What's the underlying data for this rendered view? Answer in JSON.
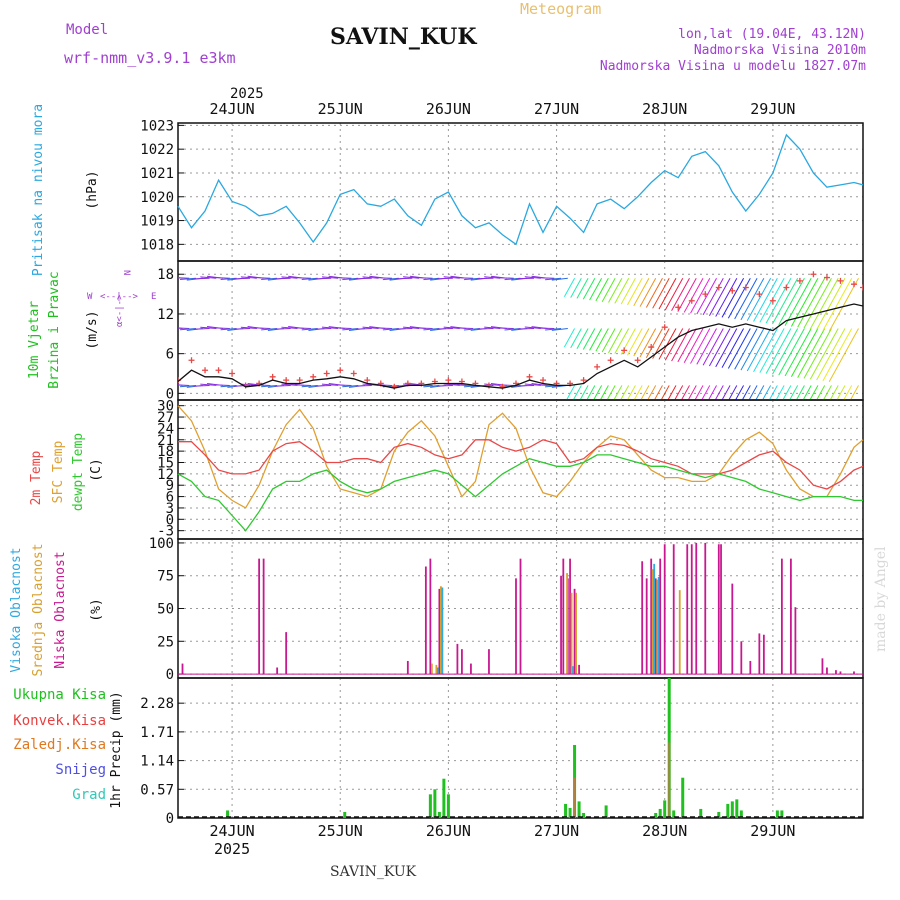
{
  "header": {
    "model_label": "Model",
    "model_name": "wrf-nmm_v3.9.1 e3km",
    "station": "SAVIN_KUK",
    "meteogram_label": "Meteogram",
    "lonlat": "lon,lat (19.04E, 43.12N)",
    "elevation": "Nadmorska Visina 2010m",
    "model_elevation": "Nadmorska Visina u modelu 1827.07m",
    "year_top": "2025",
    "year_bottom": "2025",
    "footer_station": "SAVIN_KUK",
    "credit": "made by Angel"
  },
  "colors": {
    "pressure": "#2aa8e0",
    "temp2m": "#e84848",
    "sfc": "#e0a030",
    "dewpt": "#30c830",
    "high_cloud": "#30a8e0",
    "mid_cloud": "#d8a030",
    "low_cloud": "#c81890",
    "total_precip": "#20c020",
    "conv_precip": "#e84040",
    "frozen": "#e07820",
    "snow": "#5050e0",
    "hail": "#30c8b8",
    "purple_text": "#a040d0"
  },
  "dates": [
    "24JUN",
    "25JUN",
    "26JUN",
    "27JUN",
    "28JUN",
    "29JUN"
  ],
  "chart_data": [
    {
      "type": "line",
      "id": "pressure",
      "title": "Pritisak na nivou mora",
      "ylabel": "(hPa)",
      "x_unit": "hours since 2025-06-24 00:00 UTC",
      "xlim": [
        -12,
        140
      ],
      "ylim": [
        1017.3,
        1023.1
      ],
      "yticks": [
        1018,
        1019,
        1020,
        1021,
        1022,
        1023
      ],
      "series": [
        {
          "name": "Pritisak",
          "x": [
            -12,
            -9,
            -6,
            -3,
            0,
            3,
            6,
            9,
            12,
            15,
            18,
            21,
            24,
            27,
            30,
            33,
            36,
            39,
            42,
            45,
            48,
            51,
            54,
            57,
            60,
            63,
            66,
            69,
            72,
            75,
            78,
            81,
            84,
            87,
            90,
            93,
            96,
            99,
            102,
            105,
            108,
            111,
            114,
            117,
            120,
            123,
            126,
            129,
            132,
            135,
            138,
            140
          ],
          "y": [
            1019.6,
            1018.7,
            1019.4,
            1020.7,
            1019.8,
            1019.6,
            1019.2,
            1019.3,
            1019.6,
            1018.9,
            1018.1,
            1018.9,
            1020.1,
            1020.3,
            1019.7,
            1019.6,
            1019.9,
            1019.2,
            1018.8,
            1019.9,
            1020.2,
            1019.2,
            1018.7,
            1018.9,
            1018.4,
            1018.0,
            1019.7,
            1018.5,
            1019.6,
            1019.1,
            1018.5,
            1019.7,
            1019.9,
            1019.5,
            1020.0,
            1020.6,
            1021.1,
            1020.8,
            1021.7,
            1021.9,
            1021.3,
            1020.2,
            1019.4,
            1020.1,
            1021.0,
            1022.6,
            1022.0,
            1021.0,
            1020.4,
            1020.5,
            1020.6,
            1020.5
          ]
        }
      ]
    },
    {
      "type": "line",
      "id": "wind",
      "title": "10m Vjetar Brzina i Pravac",
      "ylabel": "(m/s)",
      "compass": {
        "n": "N",
        "s": "S",
        "e": "E",
        "w": "W",
        "sym": "α<-|->"
      },
      "xlim": [
        -12,
        140
      ],
      "ylim": [
        -1,
        20
      ],
      "yticks": [
        0,
        6,
        12,
        18
      ],
      "series": [
        {
          "name": "Udari vjetra",
          "marker": "+",
          "x": [
            -12,
            -9,
            -6,
            -3,
            0,
            3,
            6,
            9,
            12,
            15,
            18,
            21,
            24,
            27,
            30,
            33,
            36,
            39,
            42,
            45,
            48,
            51,
            54,
            57,
            60,
            63,
            66,
            69,
            72,
            75,
            78,
            81,
            84,
            87,
            90,
            93,
            96,
            99,
            102,
            105,
            108,
            111,
            114,
            117,
            120,
            123,
            126,
            129,
            132,
            135,
            138,
            140
          ],
          "y": [
            2.0,
            5.0,
            3.5,
            3.5,
            3.0,
            1.2,
            1.5,
            2.5,
            2.0,
            2.0,
            2.5,
            3.0,
            3.5,
            3.0,
            2.0,
            1.5,
            1.0,
            1.5,
            1.5,
            1.8,
            2.0,
            1.8,
            1.5,
            1.2,
            1.0,
            1.5,
            2.5,
            2.0,
            1.5,
            1.5,
            2.0,
            4.0,
            5.0,
            6.5,
            5.0,
            7.0,
            10.0,
            13.0,
            14.0,
            15.0,
            16.0,
            15.5,
            16.0,
            15.0,
            14.0,
            16.0,
            17.0,
            18.0,
            17.5,
            17.0,
            16.5,
            16.0
          ]
        },
        {
          "name": "Srednja brzina",
          "x": [
            -12,
            -9,
            -6,
            -3,
            0,
            3,
            6,
            9,
            12,
            15,
            18,
            21,
            24,
            27,
            30,
            33,
            36,
            39,
            42,
            45,
            48,
            51,
            54,
            57,
            60,
            63,
            66,
            69,
            72,
            75,
            78,
            81,
            84,
            87,
            90,
            93,
            96,
            99,
            102,
            105,
            108,
            111,
            114,
            117,
            120,
            123,
            126,
            129,
            132,
            135,
            138,
            140
          ],
          "y": [
            1.8,
            3.5,
            2.5,
            2.5,
            2.2,
            1.0,
            1.2,
            2.0,
            1.5,
            1.5,
            2.0,
            2.2,
            2.5,
            2.2,
            1.5,
            1.2,
            0.8,
            1.2,
            1.2,
            1.5,
            1.5,
            1.5,
            1.2,
            1.0,
            0.8,
            1.2,
            2.0,
            1.5,
            1.2,
            1.2,
            1.5,
            3.0,
            4.0,
            5.0,
            4.0,
            5.5,
            7.0,
            8.5,
            9.5,
            10.0,
            10.5,
            10.0,
            10.5,
            10.0,
            9.5,
            11.0,
            11.5,
            12.0,
            12.5,
            13.0,
            13.5,
            13.2
          ]
        }
      ]
    },
    {
      "type": "line",
      "id": "temperature",
      "title": "2m Temp / SFC Temp / dewpt Temp",
      "ylabel": "(C)",
      "xlim": [
        -12,
        140
      ],
      "ylim": [
        -5.2,
        31.5
      ],
      "yticks": [
        -3,
        0,
        3,
        6,
        9,
        12,
        15,
        18,
        21,
        24,
        27,
        30
      ],
      "series": [
        {
          "name": "2m Temp",
          "x": [
            -12,
            -9,
            -6,
            -3,
            0,
            3,
            6,
            9,
            12,
            15,
            18,
            21,
            24,
            27,
            30,
            33,
            36,
            39,
            42,
            45,
            48,
            51,
            54,
            57,
            60,
            63,
            66,
            69,
            72,
            75,
            78,
            81,
            84,
            87,
            90,
            93,
            96,
            99,
            102,
            105,
            108,
            111,
            114,
            117,
            120,
            123,
            126,
            129,
            132,
            135,
            138,
            140
          ],
          "y": [
            20.5,
            20.5,
            17,
            13,
            12,
            12,
            13,
            18,
            20,
            20.5,
            18,
            15,
            15,
            16,
            16,
            15,
            19,
            20,
            19,
            17,
            16,
            17,
            21,
            21,
            19,
            18,
            19,
            21,
            20,
            15,
            16,
            19,
            20,
            19.5,
            18,
            16,
            15,
            14,
            12,
            12,
            12,
            13,
            15,
            17,
            18,
            15,
            13,
            9,
            8,
            10,
            13,
            14
          ]
        },
        {
          "name": "SFC Temp",
          "x": [
            -12,
            -9,
            -6,
            -3,
            0,
            3,
            6,
            9,
            12,
            15,
            18,
            21,
            24,
            27,
            30,
            33,
            36,
            39,
            42,
            45,
            48,
            51,
            54,
            57,
            60,
            63,
            66,
            69,
            72,
            75,
            78,
            81,
            84,
            87,
            90,
            93,
            96,
            99,
            102,
            105,
            108,
            111,
            114,
            117,
            120,
            123,
            126,
            129,
            132,
            135,
            138,
            140
          ],
          "y": [
            30,
            26,
            18,
            8,
            5,
            3,
            9,
            18,
            25,
            29,
            24,
            14,
            8,
            7,
            6,
            8,
            18,
            23,
            26,
            22,
            14,
            6,
            10,
            25,
            28,
            24,
            14,
            7,
            6,
            10,
            15,
            19,
            22,
            21,
            17,
            13,
            11,
            11,
            10,
            10,
            12,
            17,
            21,
            23,
            20,
            13,
            8,
            6,
            6,
            12,
            19,
            21
          ]
        },
        {
          "name": "dewpt Temp",
          "x": [
            -12,
            -9,
            -6,
            -3,
            0,
            3,
            6,
            9,
            12,
            15,
            18,
            21,
            24,
            27,
            30,
            33,
            36,
            39,
            42,
            45,
            48,
            51,
            54,
            57,
            60,
            63,
            66,
            69,
            72,
            75,
            78,
            81,
            84,
            87,
            90,
            93,
            96,
            99,
            102,
            105,
            108,
            111,
            114,
            117,
            120,
            123,
            126,
            129,
            132,
            135,
            138,
            140
          ],
          "y": [
            12,
            10,
            6,
            5,
            1,
            -3,
            2,
            8,
            10,
            10,
            12,
            13,
            10,
            8,
            7,
            8,
            10,
            11,
            12,
            13,
            12,
            9,
            6,
            9,
            12,
            14,
            16,
            15,
            14,
            14,
            15,
            17,
            17,
            16,
            15,
            14,
            14,
            13,
            12,
            11,
            12,
            11,
            10,
            8,
            7,
            6,
            5,
            6,
            6,
            6,
            5,
            5
          ]
        }
      ]
    },
    {
      "type": "bar",
      "id": "clouds",
      "title": "Visoka / Srednja / Niska Oblacnost",
      "ylabel": "(%)",
      "xlim": [
        -12,
        140
      ],
      "ylim": [
        -3,
        103
      ],
      "yticks": [
        0,
        25,
        50,
        75,
        100
      ],
      "series": [
        {
          "name": "Niska Oblacnost",
          "x": [
            -11,
            6,
            7,
            10,
            12,
            39,
            43,
            44,
            46,
            50,
            51,
            53,
            57,
            63,
            64,
            73,
            73.5,
            74.5,
            75,
            76,
            77,
            91,
            92,
            93,
            94,
            95,
            96,
            98,
            101,
            102,
            103,
            105,
            108,
            108.5,
            111,
            113,
            115,
            117,
            118,
            122,
            124,
            125,
            131,
            132,
            134,
            135,
            138
          ],
          "y": [
            8,
            88,
            88,
            5,
            32,
            10,
            82,
            88,
            65,
            23,
            19,
            8,
            19,
            73,
            88,
            75,
            88,
            73,
            88,
            65,
            7,
            86,
            73,
            88,
            73,
            88,
            99,
            99,
            99,
            99,
            100,
            100,
            99,
            99,
            69,
            25,
            10,
            31,
            30,
            88,
            88,
            51,
            12,
            5,
            3,
            2,
            2
          ]
        },
        {
          "name": "Srednja Oblacnost",
          "x": [
            44,
            45,
            46,
            74,
            75,
            76,
            93,
            94,
            99
          ],
          "y": [
            8,
            7,
            67,
            77,
            62,
            62,
            80,
            72,
            64
          ]
        },
        {
          "name": "Visoka Oblacnost",
          "x": [
            45,
            46,
            75,
            93,
            94
          ],
          "y": [
            5,
            66,
            6,
            84,
            74
          ]
        }
      ]
    },
    {
      "type": "bar",
      "id": "precip",
      "title": "1hr Precip",
      "ylabel": "(mm)",
      "xlim": [
        -12,
        140
      ],
      "ylim": [
        0,
        2.78
      ],
      "yticks": [
        0,
        0.57,
        1.14,
        1.71,
        2.28
      ],
      "ytick_labels": [
        "0",
        "0.57",
        "1.14",
        "1.71",
        "2.28"
      ],
      "series": [
        {
          "name": "Ukupna Kisa",
          "x": [
            -1,
            25,
            44,
            45,
            46,
            47,
            48,
            74,
            75,
            76,
            77,
            78,
            83,
            94,
            95,
            96,
            97,
            98,
            100,
            104,
            108,
            110,
            111,
            112,
            113,
            121,
            122
          ],
          "y": [
            0.15,
            0.12,
            0.47,
            0.57,
            0.12,
            0.78,
            0.47,
            0.28,
            0.2,
            1.45,
            0.33,
            0.1,
            0.25,
            0.1,
            0.18,
            0.35,
            2.78,
            0.15,
            0.8,
            0.18,
            0.12,
            0.28,
            0.33,
            0.37,
            0.15,
            0.15,
            0.15
          ]
        },
        {
          "name": "Konvek.Kisa",
          "x": [
            76,
            97
          ],
          "y": [
            0.8,
            1.5
          ]
        },
        {
          "name": "Zaledj.Kisa",
          "x": [],
          "y": []
        },
        {
          "name": "Snijeg",
          "x": [],
          "y": []
        },
        {
          "name": "Grad",
          "x": [],
          "y": []
        }
      ]
    }
  ],
  "panel_labels": {
    "pressure": {
      "title": "Pritisak na nivou mora",
      "unit": "(hPa)"
    },
    "wind": {
      "title1": "10m Vjetar",
      "title2": "Brzina i Pravac",
      "unit": "(m/s)"
    },
    "temp": {
      "t2m": "2m Temp",
      "sfc": "SFC Temp",
      "dew": "dewpt Temp",
      "unit": "(C)"
    },
    "cloud": {
      "high": "Visoka Oblacnost",
      "mid": "Srednja Oblacnost",
      "low": "Niska Oblacnost",
      "unit": "(%)"
    },
    "precip": {
      "unit": "1hr Precip (mm)",
      "legend": [
        "Ukupna Kisa",
        "Konvek.Kisa",
        "Zaledj.Kisa",
        "Snijeg",
        "Grad"
      ]
    }
  }
}
